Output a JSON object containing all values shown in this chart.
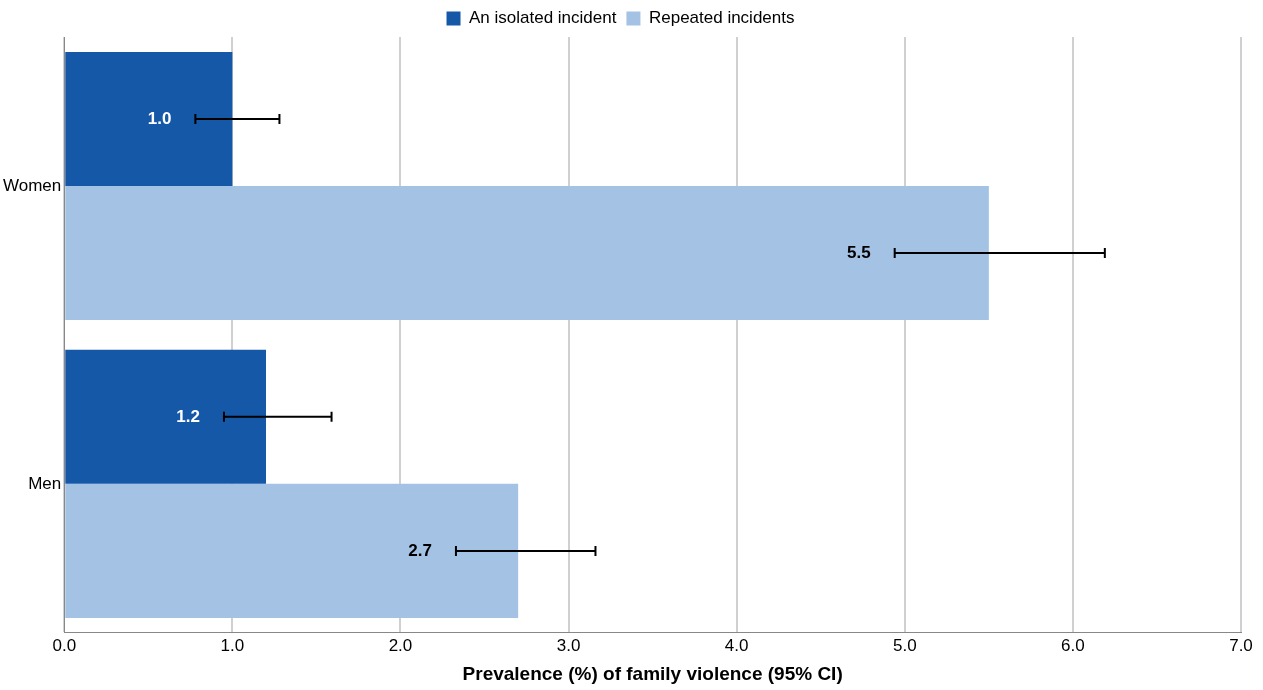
{
  "chart_data": {
    "type": "bar",
    "orientation": "horizontal",
    "xlabel": "Prevalence (%) of family violence (95% CI)",
    "categories": [
      "Women",
      "Men"
    ],
    "series": [
      {
        "name": "An isolated incident",
        "color": "#1558a8",
        "values": [
          1.0,
          1.2
        ],
        "errors": [
          [
            0.78,
            1.28
          ],
          [
            0.95,
            1.59
          ]
        ],
        "value_labels": [
          "1.0",
          "1.2"
        ]
      },
      {
        "name": "Repeated incidents",
        "color": "#a4c2e4",
        "values": [
          5.5,
          2.7
        ],
        "errors": [
          [
            4.94,
            6.19
          ],
          [
            2.33,
            3.16
          ]
        ],
        "value_labels": [
          "5.5",
          "2.7"
        ]
      }
    ],
    "xlim": [
      0,
      7
    ],
    "xticks": [
      {
        "value": 0,
        "label": "0.0"
      },
      {
        "value": 1,
        "label": "1.0"
      },
      {
        "value": 2,
        "label": "2.0"
      },
      {
        "value": 3,
        "label": "3.0"
      },
      {
        "value": 4,
        "label": "4.0"
      },
      {
        "value": 5,
        "label": "5.0"
      },
      {
        "value": 6,
        "label": "6.0"
      },
      {
        "value": 7,
        "label": "7.0"
      }
    ],
    "grid": "x",
    "legend": "top"
  }
}
